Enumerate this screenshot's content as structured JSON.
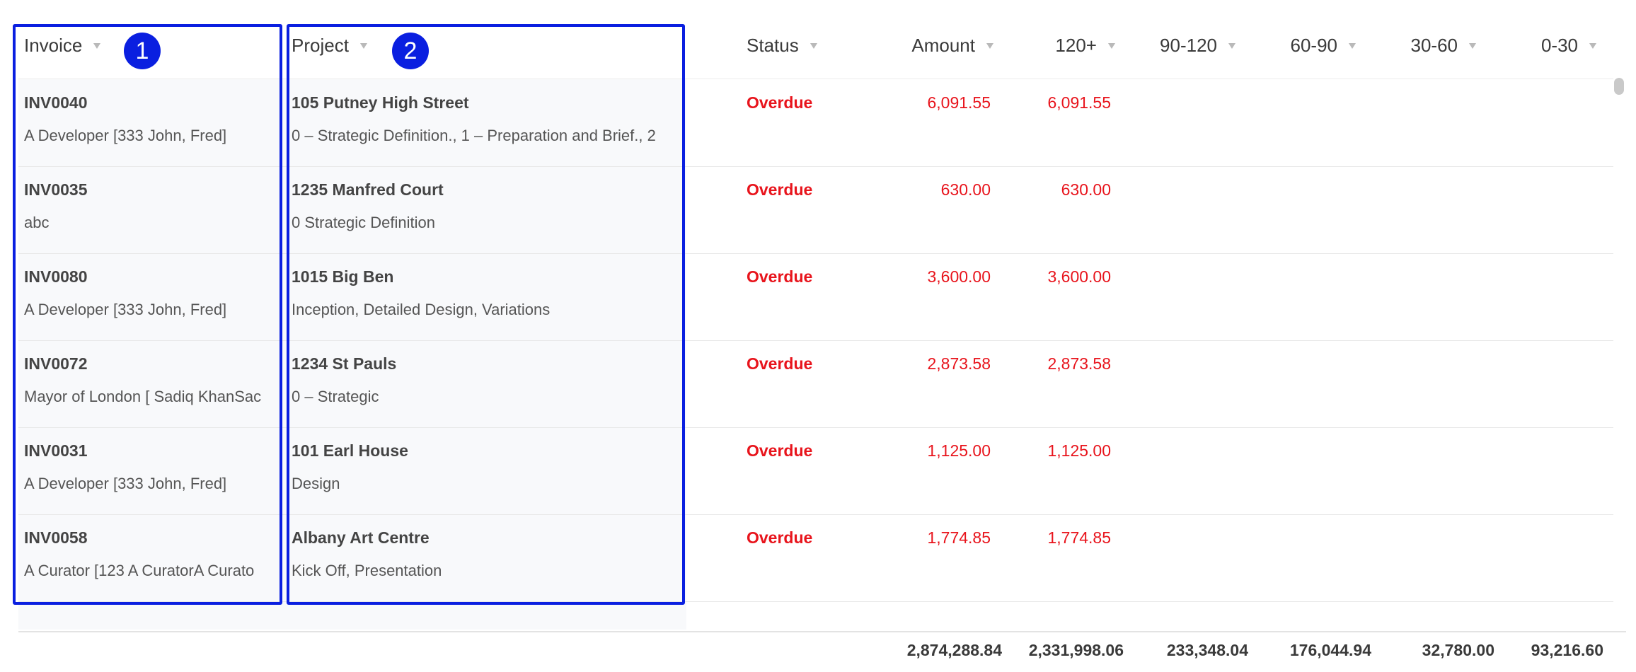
{
  "header": {
    "invoice": "Invoice",
    "project": "Project",
    "status": "Status",
    "amount": "Amount",
    "age_120_plus": "120+",
    "age_90_120": "90-120",
    "age_60_90": "60-90",
    "age_30_60": "30-60",
    "age_0_30": "0-30"
  },
  "annotations": {
    "badge_1": "1",
    "badge_2": "2",
    "color": "#0a1fe0"
  },
  "colors": {
    "overdue": "#e8141c"
  },
  "rows": [
    {
      "invoice": "INV0040",
      "client": "A Developer [333 John, Fred]",
      "project": "105 Putney High Street",
      "stages": "0 – Strategic Definition., 1 – Preparation and Brief., 2",
      "status": "Overdue",
      "amount": "6,091.55",
      "age_120_plus": "6,091.55"
    },
    {
      "invoice": "INV0035",
      "client": "abc",
      "project": "1235 Manfred Court",
      "stages": "0 Strategic Definition",
      "status": "Overdue",
      "amount": "630.00",
      "age_120_plus": "630.00"
    },
    {
      "invoice": "INV0080",
      "client": "A Developer [333 John, Fred]",
      "project": "1015 Big Ben",
      "stages": "Inception, Detailed Design, Variations",
      "status": "Overdue",
      "amount": "3,600.00",
      "age_120_plus": "3,600.00"
    },
    {
      "invoice": "INV0072",
      "client": "Mayor of London [ Sadiq KhanSac",
      "project": "1234 St Pauls",
      "stages": "0 – Strategic",
      "status": "Overdue",
      "amount": "2,873.58",
      "age_120_plus": "2,873.58"
    },
    {
      "invoice": "INV0031",
      "client": "A Developer [333 John, Fred]",
      "project": "101 Earl House",
      "stages": "Design",
      "status": "Overdue",
      "amount": "1,125.00",
      "age_120_plus": "1,125.00"
    },
    {
      "invoice": "INV0058",
      "client": "A Curator [123 A CuratorA Curato",
      "project": "Albany Art Centre",
      "stages": "Kick Off, Presentation",
      "status": "Overdue",
      "amount": "1,774.85",
      "age_120_plus": "1,774.85"
    }
  ],
  "totals": {
    "amount": "2,874,288.84",
    "age_120_plus": "2,331,998.06",
    "age_90_120": "233,348.04",
    "age_60_90": "176,044.94",
    "age_30_60": "32,780.00",
    "age_0_30": "93,216.60"
  }
}
